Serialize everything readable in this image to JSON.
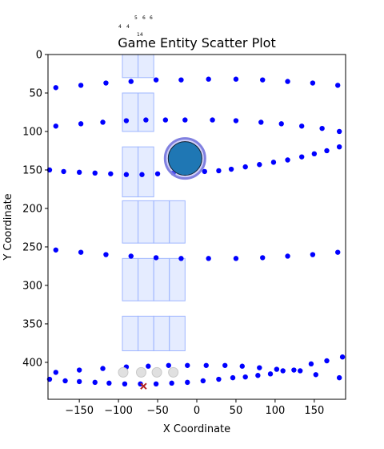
{
  "chart_data": {
    "type": "scatter",
    "title": "Game Entity Scatter Plot",
    "xlabel": "X Coordinate",
    "ylabel": "Y Coordinate",
    "xlim": [
      -190,
      190
    ],
    "ylim": [
      0,
      448
    ],
    "y_inverted": true,
    "grid": false,
    "x_ticks": [
      -150,
      -100,
      -50,
      0,
      50,
      100,
      150
    ],
    "y_ticks": [
      0,
      50,
      100,
      150,
      200,
      250,
      300,
      350,
      400
    ],
    "colors": {
      "points": "#0000ff",
      "big_marker": "#1f77b4",
      "big_marker_ring": "#8080e0",
      "tiles": "#cfdcff",
      "x_marker": "#b22222",
      "ghost": "#e0e0e0"
    },
    "series": [
      {
        "marker": "dot",
        "points": [
          [
            -180,
            43
          ],
          [
            -148,
            40
          ],
          [
            -116,
            37
          ],
          [
            -84,
            35
          ],
          [
            -52,
            33
          ],
          [
            -20,
            33
          ],
          [
            15,
            32
          ],
          [
            50,
            32
          ],
          [
            84,
            33
          ],
          [
            116,
            35
          ],
          [
            148,
            37
          ],
          [
            180,
            40
          ],
          [
            -180,
            93
          ],
          [
            -148,
            90
          ],
          [
            -120,
            88
          ],
          [
            -90,
            86
          ],
          [
            -65,
            85
          ],
          [
            -40,
            85
          ],
          [
            -15,
            85
          ],
          [
            20,
            85
          ],
          [
            50,
            86
          ],
          [
            82,
            88
          ],
          [
            108,
            90
          ],
          [
            134,
            93
          ],
          [
            160,
            96
          ],
          [
            182,
            100
          ],
          [
            -188,
            150
          ],
          [
            -170,
            152
          ],
          [
            -150,
            153
          ],
          [
            -130,
            154
          ],
          [
            -110,
            155
          ],
          [
            -90,
            156
          ],
          [
            -70,
            156
          ],
          [
            -50,
            155
          ],
          [
            -30,
            154
          ],
          [
            -10,
            153
          ],
          [
            10,
            152
          ],
          [
            28,
            151
          ],
          [
            44,
            149
          ],
          [
            62,
            146
          ],
          [
            80,
            143
          ],
          [
            98,
            140
          ],
          [
            116,
            137
          ],
          [
            134,
            133
          ],
          [
            150,
            129
          ],
          [
            166,
            125
          ],
          [
            182,
            120
          ],
          [
            -180,
            254
          ],
          [
            -148,
            257
          ],
          [
            -116,
            260
          ],
          [
            -84,
            262
          ],
          [
            -52,
            264
          ],
          [
            -20,
            265
          ],
          [
            15,
            265
          ],
          [
            50,
            265
          ],
          [
            84,
            264
          ],
          [
            116,
            262
          ],
          [
            148,
            260
          ],
          [
            180,
            257
          ],
          [
            -180,
            413
          ],
          [
            -150,
            410
          ],
          [
            -120,
            408
          ],
          [
            -90,
            406
          ],
          [
            -62,
            405
          ],
          [
            -36,
            404
          ],
          [
            -12,
            404
          ],
          [
            12,
            404
          ],
          [
            36,
            404
          ],
          [
            58,
            405
          ],
          [
            80,
            407
          ],
          [
            102,
            409
          ],
          [
            124,
            410
          ],
          [
            146,
            402
          ],
          [
            166,
            398
          ],
          [
            186,
            393
          ],
          [
            -188,
            422
          ],
          [
            -168,
            424
          ],
          [
            -150,
            425
          ],
          [
            -130,
            426
          ],
          [
            -112,
            427
          ],
          [
            -92,
            428
          ],
          [
            -72,
            428
          ],
          [
            -52,
            428
          ],
          [
            -32,
            427
          ],
          [
            -12,
            426
          ],
          [
            8,
            424
          ],
          [
            28,
            422
          ],
          [
            46,
            420
          ],
          [
            62,
            419
          ],
          [
            78,
            417
          ],
          [
            94,
            415
          ],
          [
            110,
            411
          ],
          [
            132,
            411
          ],
          [
            152,
            416
          ],
          [
            182,
            420
          ]
        ]
      },
      {
        "marker": "big-circle",
        "points": [
          [
            -15,
            135
          ]
        ]
      },
      {
        "marker": "x",
        "points": [
          [
            -68,
            431
          ]
        ]
      },
      {
        "marker": "ghost-circle",
        "points": [
          [
            -94,
            413
          ],
          [
            -71,
            413
          ],
          [
            -51,
            413
          ],
          [
            -30,
            413
          ]
        ]
      }
    ],
    "annotations": [
      "4",
      "4",
      "5",
      "6",
      "6",
      "14"
    ]
  }
}
